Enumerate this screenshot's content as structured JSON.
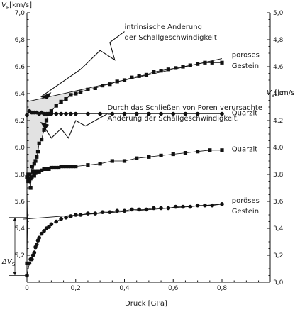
{
  "chart_data": {
    "type": "scatter",
    "x_axis": {
      "label": "Druck [GPa]",
      "range": [
        0,
        0.9
      ],
      "ticks": [
        0,
        0.2,
        0.4,
        0.6,
        0.8
      ],
      "tick_labels": [
        "0",
        "0,2",
        "0,4",
        "0,6",
        "0,8"
      ]
    },
    "y_axis_left": {
      "label": "VP [km/s]",
      "label_main": "V",
      "label_sub": "P",
      "label_unit": "[km/s]",
      "range": [
        5.0,
        7.0
      ],
      "ticks": [
        5.0,
        5.2,
        5.4,
        5.6,
        5.8,
        6.0,
        6.2,
        6.4,
        6.6,
        6.8,
        7.0
      ],
      "tick_labels": [
        "",
        "5,2",
        "5,4",
        "5,6",
        "5,8",
        "6,0",
        "6,2",
        "6,4",
        "6,6",
        "6,8",
        "7,0"
      ]
    },
    "y_axis_right": {
      "label": "VS [km/s]",
      "label_main": "V",
      "label_sub": "S",
      "label_unit": "[km/s]",
      "range": [
        3.0,
        5.0
      ],
      "ticks": [
        3.0,
        3.2,
        3.4,
        3.6,
        3.8,
        4.0,
        4.2,
        4.4,
        4.6,
        4.8,
        5.0
      ],
      "tick_labels": [
        "3,0",
        "3,2",
        "3,4",
        "3,6",
        "3,8",
        "4,0",
        "4,2",
        "4,4",
        "4,6",
        "4,8",
        "5,0"
      ]
    },
    "series": [
      {
        "name": "poröses Gestein",
        "axis": "left",
        "marker": "square",
        "x": [
          0.0,
          0.005,
          0.01,
          0.015,
          0.02,
          0.025,
          0.03,
          0.035,
          0.04,
          0.045,
          0.05,
          0.06,
          0.07,
          0.08,
          0.09,
          0.1,
          0.12,
          0.14,
          0.16,
          0.18,
          0.2,
          0.22,
          0.25,
          0.28,
          0.31,
          0.34,
          0.37,
          0.4,
          0.43,
          0.46,
          0.49,
          0.52,
          0.55,
          0.58,
          0.61,
          0.64,
          0.67,
          0.7,
          0.73,
          0.76,
          0.8
        ],
        "y": [
          5.14,
          5.8,
          5.75,
          5.7,
          5.86,
          5.82,
          5.88,
          5.9,
          5.93,
          5.97,
          6.03,
          6.06,
          6.13,
          6.2,
          6.25,
          6.27,
          6.31,
          6.34,
          6.36,
          6.39,
          6.4,
          6.41,
          6.43,
          6.44,
          6.46,
          6.47,
          6.49,
          6.5,
          6.52,
          6.53,
          6.54,
          6.56,
          6.57,
          6.58,
          6.59,
          6.6,
          6.61,
          6.62,
          6.63,
          6.63,
          6.63
        ]
      },
      {
        "name": "Quarzit",
        "axis": "left",
        "marker": "square",
        "x": [
          0.0,
          0.005,
          0.01,
          0.015,
          0.02,
          0.025,
          0.03,
          0.035,
          0.04,
          0.045,
          0.05,
          0.06,
          0.07,
          0.08,
          0.09,
          0.1,
          0.11,
          0.12,
          0.13,
          0.14,
          0.15,
          0.16,
          0.17,
          0.18,
          0.19,
          0.2,
          0.25,
          0.3,
          0.35,
          0.4,
          0.45,
          0.5,
          0.55,
          0.6,
          0.65,
          0.7,
          0.75,
          0.8
        ],
        "y": [
          5.78,
          5.75,
          5.8,
          5.77,
          5.78,
          5.82,
          5.79,
          5.81,
          5.82,
          5.82,
          5.82,
          5.83,
          5.84,
          5.84,
          5.84,
          5.85,
          5.85,
          5.85,
          5.85,
          5.86,
          5.86,
          5.86,
          5.86,
          5.86,
          5.86,
          5.86,
          5.87,
          5.88,
          5.9,
          5.9,
          5.92,
          5.93,
          5.94,
          5.95,
          5.96,
          5.97,
          5.98,
          5.98
        ]
      },
      {
        "name": "Quarzit",
        "axis": "right",
        "marker": "circle",
        "x": [
          0.0,
          0.01,
          0.02,
          0.03,
          0.04,
          0.05,
          0.06,
          0.07,
          0.08,
          0.09,
          0.1,
          0.12,
          0.14,
          0.16,
          0.18,
          0.2,
          0.25,
          0.3,
          0.35,
          0.4,
          0.45,
          0.5,
          0.55,
          0.6,
          0.65,
          0.7,
          0.8
        ],
        "y": [
          4.24,
          4.27,
          4.26,
          4.26,
          4.26,
          4.25,
          4.26,
          4.25,
          4.25,
          4.25,
          4.25,
          4.25,
          4.25,
          4.25,
          4.25,
          4.25,
          4.25,
          4.25,
          4.25,
          4.25,
          4.25,
          4.25,
          4.25,
          4.25,
          4.25,
          4.25,
          4.25
        ]
      },
      {
        "name": "poröses Gestein",
        "axis": "right",
        "marker": "circle",
        "x": [
          0.0,
          0.01,
          0.015,
          0.02,
          0.025,
          0.03,
          0.035,
          0.04,
          0.045,
          0.05,
          0.06,
          0.07,
          0.08,
          0.09,
          0.1,
          0.12,
          0.14,
          0.16,
          0.18,
          0.2,
          0.22,
          0.25,
          0.28,
          0.31,
          0.34,
          0.37,
          0.4,
          0.43,
          0.46,
          0.49,
          0.52,
          0.55,
          0.58,
          0.61,
          0.64,
          0.67,
          0.7,
          0.73,
          0.76,
          0.8
        ],
        "y": [
          3.05,
          3.14,
          3.17,
          3.17,
          3.2,
          3.22,
          3.26,
          3.28,
          3.31,
          3.33,
          3.36,
          3.38,
          3.4,
          3.41,
          3.43,
          3.45,
          3.47,
          3.48,
          3.49,
          3.5,
          3.5,
          3.51,
          3.51,
          3.52,
          3.52,
          3.53,
          3.53,
          3.54,
          3.54,
          3.54,
          3.55,
          3.55,
          3.55,
          3.56,
          3.56,
          3.56,
          3.57,
          3.57,
          3.57,
          3.58
        ]
      }
    ],
    "series_labels": [
      {
        "text": "poröses",
        "x": 0.84,
        "y": 6.67,
        "axis": "left"
      },
      {
        "text": "Gestein",
        "x": 0.84,
        "y": 6.59,
        "axis": "left"
      },
      {
        "text": "Quarzit",
        "x": 0.84,
        "y": 5.97,
        "axis": "left"
      },
      {
        "text": "Quarzit",
        "x": 0.84,
        "y": 4.24,
        "axis": "right"
      },
      {
        "text": "poröses",
        "x": 0.84,
        "y": 3.59,
        "axis": "right"
      },
      {
        "text": "Gestein",
        "x": 0.84,
        "y": 3.51,
        "axis": "right"
      }
    ],
    "annotations": [
      {
        "text": "intrinsische Änderung",
        "x": 0.4,
        "y": 6.88,
        "axis": "left"
      },
      {
        "text": "der Schallgeschwindigkeit",
        "x": 0.4,
        "y": 6.8,
        "axis": "left"
      },
      {
        "text": "Durch das Schließen von Poren verursachte",
        "x": 0.33,
        "y": 6.28,
        "axis": "left"
      },
      {
        "text": "Änderung der Schallgeschwindigkeit.",
        "x": 0.33,
        "y": 6.2,
        "axis": "left"
      }
    ],
    "delta_label": {
      "main": "ΔV",
      "sub": "S"
    },
    "delta_vs_range": [
      3.05,
      3.48
    ],
    "shaded_region_color": "#e2e2e2",
    "data_color": "#111111"
  }
}
